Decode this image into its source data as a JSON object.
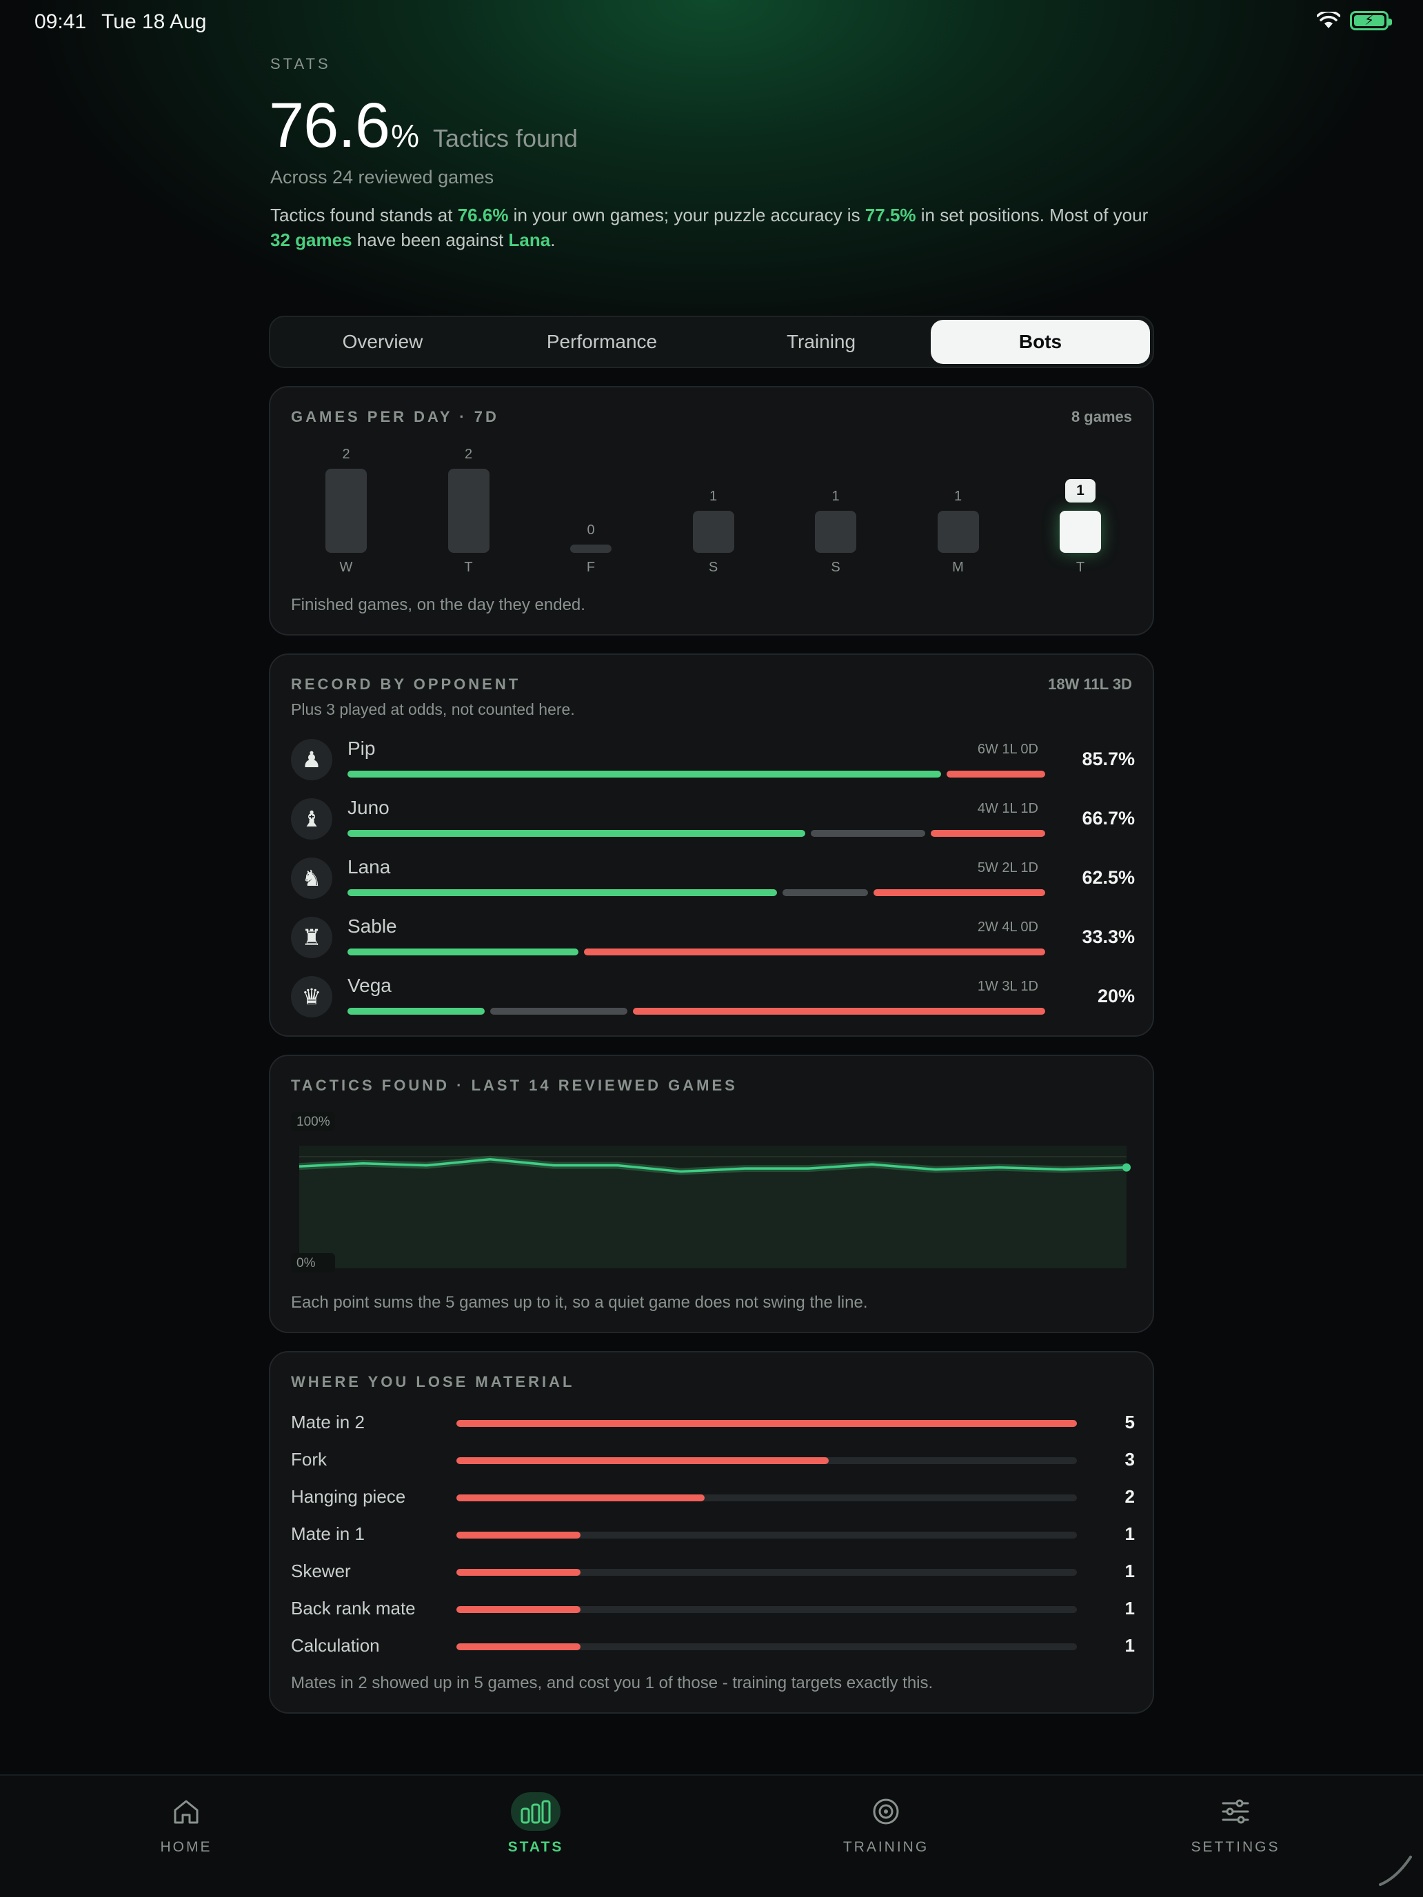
{
  "status_bar": {
    "time": "09:41",
    "date": "Tue 18 Aug"
  },
  "header": {
    "eyebrow": "STATS",
    "hero_value": "76.6",
    "hero_unit": "%",
    "hero_label": "Tactics found",
    "subtitle": "Across 24 reviewed games",
    "summary": {
      "p1": "Tactics found stands at ",
      "v1": "76.6%",
      "p2": " in your own games; your puzzle accuracy is ",
      "v2": "77.5%",
      "p3": " in set positions. Most of your ",
      "v3": "32 games",
      "p4": " have been against ",
      "v4": "Lana",
      "p5": "."
    }
  },
  "tabs": [
    {
      "label": "Overview",
      "active": false
    },
    {
      "label": "Performance",
      "active": false
    },
    {
      "label": "Training",
      "active": false
    },
    {
      "label": "Bots",
      "active": true
    }
  ],
  "games_per_day": {
    "title": "GAMES PER DAY · 7D",
    "meta": "8 games",
    "footnote": "Finished games, on the day they ended.",
    "chart_data": {
      "type": "bar",
      "categories": [
        "W",
        "T",
        "F",
        "S",
        "S",
        "M",
        "T"
      ],
      "values": [
        2,
        2,
        0,
        1,
        1,
        1,
        1
      ],
      "highlight_index": 6
    }
  },
  "record_by_opponent": {
    "title": "RECORD BY OPPONENT",
    "meta": "18W 11L 3D",
    "subtitle": "Plus 3 played at odds, not counted here.",
    "opponents": [
      {
        "name": "Pip",
        "icon": "pawn-icon",
        "glyph": "♟",
        "record": "6W 1L 0D",
        "w": 6,
        "l": 1,
        "d": 0,
        "pct": "85.7%"
      },
      {
        "name": "Juno",
        "icon": "bishop-icon",
        "glyph": "♝",
        "record": "4W 1L 1D",
        "w": 4,
        "l": 1,
        "d": 1,
        "pct": "66.7%"
      },
      {
        "name": "Lana",
        "icon": "knight-icon",
        "glyph": "♞",
        "record": "5W 2L 1D",
        "w": 5,
        "l": 2,
        "d": 1,
        "pct": "62.5%"
      },
      {
        "name": "Sable",
        "icon": "rook-icon",
        "glyph": "♜",
        "record": "2W 4L 0D",
        "w": 2,
        "l": 4,
        "d": 0,
        "pct": "33.3%"
      },
      {
        "name": "Vega",
        "icon": "queen-icon",
        "glyph": "♛",
        "record": "1W 3L 1D",
        "w": 1,
        "l": 3,
        "d": 1,
        "pct": "20%"
      }
    ]
  },
  "tactics_trend": {
    "title": "TACTICS FOUND · LAST 14 REVIEWED GAMES",
    "footnote": "Each point sums the 5 games up to it, so a quiet game does not swing the line.",
    "chart_data": {
      "type": "line",
      "ylim": [
        0,
        100
      ],
      "y_tick_labels": [
        "100%",
        "0%"
      ],
      "x": [
        1,
        2,
        3,
        4,
        5,
        6,
        7,
        8,
        9,
        10,
        11,
        12,
        13,
        14
      ],
      "values": [
        97,
        100,
        98,
        104,
        98,
        98,
        92,
        95,
        95,
        99,
        94,
        96,
        94,
        96
      ]
    }
  },
  "lose_material": {
    "title": "WHERE YOU LOSE MATERIAL",
    "footnote": "Mates in 2 showed up in 5 games, and cost you 1 of those - training targets exactly this.",
    "max": 5,
    "items": [
      {
        "label": "Mate in 2",
        "count": 5
      },
      {
        "label": "Fork",
        "count": 3
      },
      {
        "label": "Hanging piece",
        "count": 2
      },
      {
        "label": "Mate in 1",
        "count": 1
      },
      {
        "label": "Skewer",
        "count": 1
      },
      {
        "label": "Back rank mate",
        "count": 1
      },
      {
        "label": "Calculation",
        "count": 1
      }
    ]
  },
  "bottom_nav": [
    {
      "label": "HOME",
      "icon": "home-icon",
      "active": false
    },
    {
      "label": "STATS",
      "icon": "stats-icon",
      "active": true
    },
    {
      "label": "TRAINING",
      "icon": "target-icon",
      "active": false
    },
    {
      "label": "SETTINGS",
      "icon": "sliders-icon",
      "active": false
    }
  ],
  "colors": {
    "accent": "#4ad07f",
    "loss": "#f0625a",
    "draw": "#4a4d4f"
  }
}
